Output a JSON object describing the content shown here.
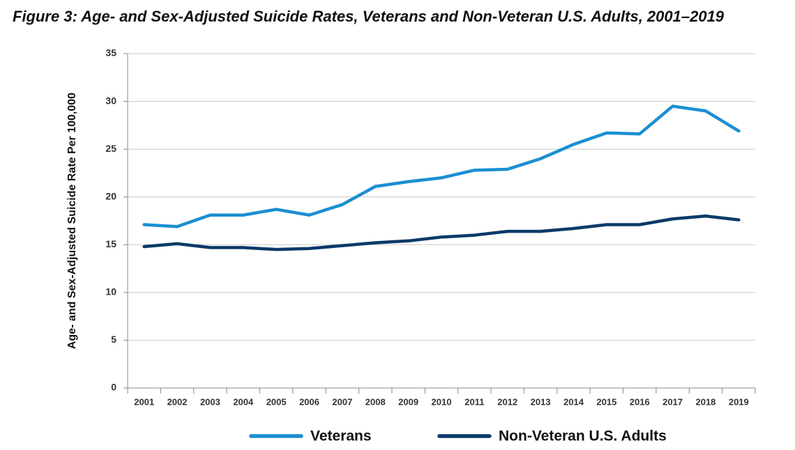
{
  "chart_data": {
    "type": "line",
    "title": "Figure 3: Age- and Sex-Adjusted Suicide Rates, Veterans and Non-Veteran U.S. Adults, 2001–2019",
    "y_label": "Age- and Sex-Adjusted Suicide Rate Per 100,000",
    "categories": [
      "2001",
      "2002",
      "2003",
      "2004",
      "2005",
      "2006",
      "2007",
      "2008",
      "2009",
      "2010",
      "2011",
      "2012",
      "2013",
      "2014",
      "2015",
      "2016",
      "2017",
      "2018",
      "2019"
    ],
    "series": [
      {
        "name": "Veterans",
        "color": "#1b8fd2",
        "values": [
          17.1,
          16.9,
          18.1,
          18.1,
          18.7,
          18.1,
          19.2,
          21.1,
          21.6,
          22.0,
          22.8,
          22.9,
          24.0,
          25.5,
          26.7,
          26.6,
          29.5,
          29.0,
          26.9
        ]
      },
      {
        "name": "Non-Veteran U.S. Adults",
        "color": "#0b3a68",
        "values": [
          14.8,
          15.1,
          14.7,
          14.7,
          14.5,
          14.6,
          14.9,
          15.2,
          15.4,
          15.8,
          16.0,
          16.4,
          16.4,
          16.7,
          17.1,
          17.1,
          17.7,
          18.0,
          17.6
        ]
      }
    ],
    "ylim": [
      0,
      35
    ],
    "yticks": [
      0,
      5,
      10,
      15,
      20,
      25,
      30,
      35
    ],
    "grid": true,
    "legend": "bottom"
  }
}
